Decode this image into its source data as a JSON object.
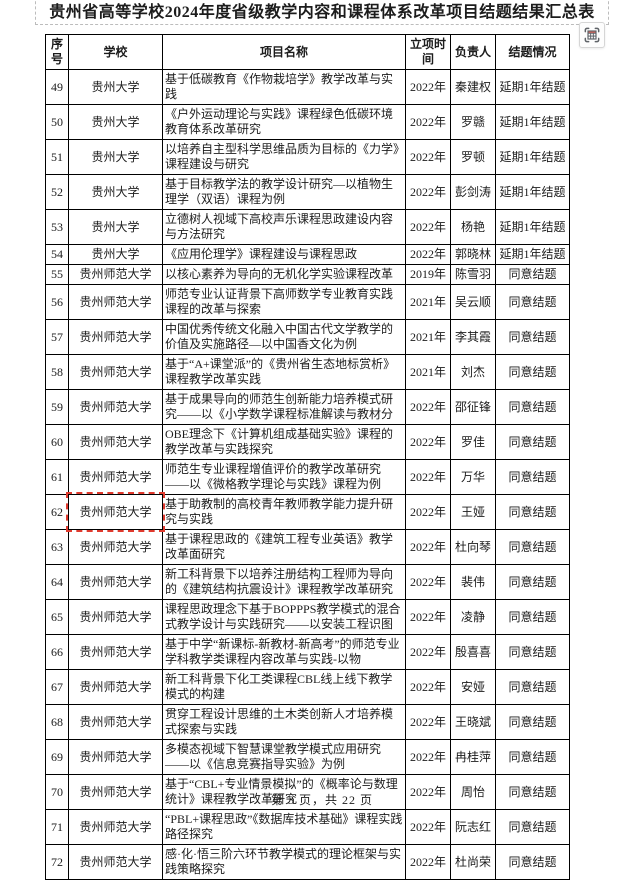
{
  "title": "贵州省高等学校2024年度省级教学内容和课程体系改革项目结题结果汇总表",
  "table": {
    "headers": [
      "序号",
      "学校",
      "项目名称",
      "立项时间",
      "负责人",
      "结题情况"
    ],
    "rows": [
      {
        "no": "49",
        "school": "贵州大学",
        "project": "基于低碳教育《作物栽培学》教学改革与实践",
        "year": "2022年",
        "lead": "秦建权",
        "status": "延期1年结题"
      },
      {
        "no": "50",
        "school": "贵州大学",
        "project": "《户外运动理论与实践》课程绿色低碳环境教育体系改革研究",
        "year": "2022年",
        "lead": "罗赣",
        "status": "延期1年结题"
      },
      {
        "no": "51",
        "school": "贵州大学",
        "project": "以培养自主型科学思维品质为目标的《力学》课程建设与研究",
        "year": "2022年",
        "lead": "罗顿",
        "status": "延期1年结题"
      },
      {
        "no": "52",
        "school": "贵州大学",
        "project": "基于目标教学法的教学设计研究—以植物生理学（双语）课程为例",
        "year": "2022年",
        "lead": "彭剑涛",
        "status": "延期1年结题"
      },
      {
        "no": "53",
        "school": "贵州大学",
        "project": "立德树人视域下高校声乐课程思政建设内容与方法研究",
        "year": "2022年",
        "lead": "杨艳",
        "status": "延期1年结题"
      },
      {
        "no": "54",
        "school": "贵州大学",
        "project": "《应用伦理学》课程建设与课程思政",
        "year": "2022年",
        "lead": "郭晓林",
        "status": "延期1年结题"
      },
      {
        "no": "55",
        "school": "贵州师范大学",
        "project": "以核心素养为导向的无机化学实验课程改革",
        "year": "2019年",
        "lead": "陈雪羽",
        "status": "同意结题"
      },
      {
        "no": "56",
        "school": "贵州师范大学",
        "project": "师范专业认证背景下高师数学专业教育实践课程的改革与探索",
        "year": "2021年",
        "lead": "吴云顺",
        "status": "同意结题"
      },
      {
        "no": "57",
        "school": "贵州师范大学",
        "project": "中国优秀传统文化融入中国古代文学教学的价值及实施路径—以中国香文化为例",
        "year": "2021年",
        "lead": "李其霞",
        "status": "同意结题"
      },
      {
        "no": "58",
        "school": "贵州师范大学",
        "project": "基于“A+课堂派”的《贵州省生态地标赏析》课程教学改革实践",
        "year": "2021年",
        "lead": "刘杰",
        "status": "同意结题"
      },
      {
        "no": "59",
        "school": "贵州师范大学",
        "project": "基于成果导向的师范生创新能力培养模式研究——以《小学数学课程标准解读与教材分",
        "year": "2022年",
        "lead": "邵征锋",
        "status": "同意结题"
      },
      {
        "no": "60",
        "school": "贵州师范大学",
        "project": "OBE理念下《计算机组成基础实验》课程的教学改革与实践探究",
        "year": "2022年",
        "lead": "罗佳",
        "status": "同意结题"
      },
      {
        "no": "61",
        "school": "贵州师范大学",
        "project": "师范生专业课程增值评价的教学改革研究——以《微格教学理论与实践》课程为例",
        "year": "2022年",
        "lead": "万华",
        "status": "同意结题"
      },
      {
        "no": "62",
        "school": "贵州师范大学",
        "project": "基于助教制的高校青年教师教学能力提升研究与实践",
        "year": "2022年",
        "lead": "王娅",
        "status": "同意结题"
      },
      {
        "no": "63",
        "school": "贵州师范大学",
        "project": "基于课程思政的《建筑工程专业英语》教学改革面研究",
        "year": "2022年",
        "lead": "杜向琴",
        "status": "同意结题"
      },
      {
        "no": "64",
        "school": "贵州师范大学",
        "project": "新工科背景下以培养注册结构工程师为导向的《建筑结构抗震设计》课程教学改革研究",
        "year": "2022年",
        "lead": "裴伟",
        "status": "同意结题"
      },
      {
        "no": "65",
        "school": "贵州师范大学",
        "project": "课程思政理念下基于BOPPPS教学模式的混合式教学设计与实践研究——以安装工程识图",
        "year": "2022年",
        "lead": "凌静",
        "status": "同意结题"
      },
      {
        "no": "66",
        "school": "贵州师范大学",
        "project": "基于中学“新课标-新教材-新高考”的师范专业学科教学类课程内容改革与实践-以物",
        "year": "2022年",
        "lead": "殷喜喜",
        "status": "同意结题"
      },
      {
        "no": "67",
        "school": "贵州师范大学",
        "project": "新工科背景下化工类课程CBL线上线下教学模式的构建",
        "year": "2022年",
        "lead": "安娅",
        "status": "同意结题"
      },
      {
        "no": "68",
        "school": "贵州师范大学",
        "project": "贯穿工程设计思维的土木类创新人才培养模式探索与实践",
        "year": "2022年",
        "lead": "王晓斌",
        "status": "同意结题"
      },
      {
        "no": "69",
        "school": "贵州师范大学",
        "project": "多模态视域下智慧课堂教学模式应用研究——以《信息竞赛指导实验》为例",
        "year": "2022年",
        "lead": "冉桂萍",
        "status": "同意结题"
      },
      {
        "no": "70",
        "school": "贵州师范大学",
        "project": "基于“CBL+专业情景模拟”的《概率论与数理统计》课程教学改革研究",
        "year": "2022年",
        "lead": "周怡",
        "status": "同意结题"
      },
      {
        "no": "71",
        "school": "贵州师范大学",
        "project": "“PBL+课程思政”《数据库技术基础》课程实践路径探究",
        "year": "2022年",
        "lead": "阮志红",
        "status": "同意结题"
      },
      {
        "no": "72",
        "school": "贵州师范大学",
        "project": "感·化·悟三阶六环节教学模式的理论框架与实践策略探究",
        "year": "2022年",
        "lead": "杜尚荣",
        "status": "同意结题"
      }
    ]
  },
  "highlight": {
    "row_no": "62",
    "column": "school",
    "color": "#e03a2e",
    "style": "dashed"
  },
  "toolbar": {
    "capture_button_icon": "table-capture-icon"
  },
  "footer": {
    "page_info": "第 3 页，共 22 页"
  },
  "colors": {
    "border": "#000000",
    "title_dash_border": "#bcbcbc",
    "highlight_red": "#e03a2e",
    "icon_gray": "#5f6368",
    "icon_red": "#d9655b"
  }
}
